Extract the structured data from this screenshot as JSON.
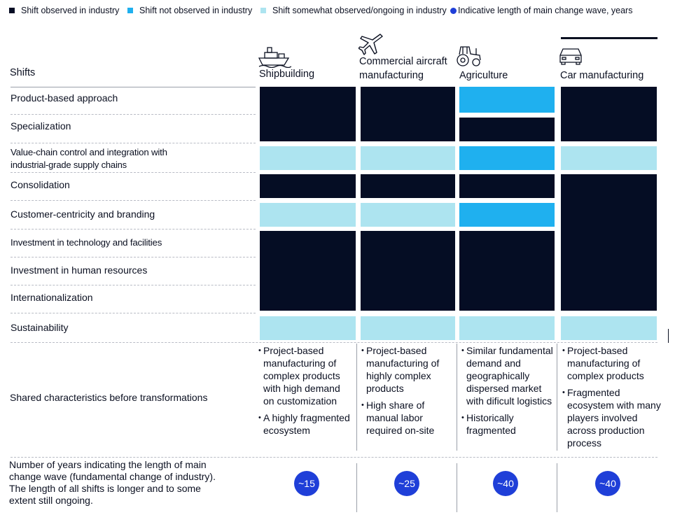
{
  "legend": [
    {
      "label": "Shift observed in industry",
      "color": "#050d24"
    },
    {
      "label": "Shift not observed in industry",
      "color": "#1fb0ef"
    },
    {
      "label": "Shift somewhat observed/ongoing in industry",
      "color": "#ade4f0"
    },
    {
      "label": "Indicative length of main change wave, years",
      "color": "#1f3fd8"
    }
  ],
  "header": {
    "shifts_label": "Shifts"
  },
  "columns": [
    {
      "name": "Shipbuilding",
      "icon": "ship-icon"
    },
    {
      "name": "Commercial aircraft manufacturing",
      "line1": "Commercial aircraft",
      "line2": "manufacturing",
      "icon": "airplane-icon"
    },
    {
      "name": "Agriculture",
      "icon": "tractor-icon"
    },
    {
      "name": "Car manufacturing",
      "icon": "car-icon"
    }
  ],
  "rows": [
    {
      "label": "Product-based approach"
    },
    {
      "label": "Specialization"
    },
    {
      "label": "Value-chain control and integration with",
      "label2": "industrial-grade supply chains"
    },
    {
      "label": "Consolidation"
    },
    {
      "label": "Customer-centricity and branding"
    },
    {
      "label": "Investment in technology and facilities"
    },
    {
      "label": "Investment in human resources"
    },
    {
      "label": "Internationalization"
    },
    {
      "label": "Sustainability"
    }
  ],
  "matrix_status": {
    "Shipbuilding": [
      "observed",
      "observed",
      "somewhat",
      "observed",
      "somewhat",
      "observed",
      "observed",
      "observed",
      "somewhat"
    ],
    "Commercial aircraft manufacturing": [
      "observed",
      "observed",
      "somewhat",
      "observed",
      "somewhat",
      "observed",
      "observed",
      "observed",
      "somewhat"
    ],
    "Agriculture": [
      "not_observed",
      "observed",
      "not_observed",
      "observed",
      "not_observed",
      "observed",
      "observed",
      "observed",
      "somewhat"
    ],
    "Car manufacturing": [
      "observed",
      "observed",
      "somewhat",
      "observed",
      "observed",
      "observed",
      "observed",
      "observed",
      "somewhat"
    ]
  },
  "characteristics": {
    "label": "Shared characteristics before transformations",
    "Shipbuilding": [
      "Project-based manufacturing of complex products with high demand on customization",
      "A highly fragmented ecosystem"
    ],
    "Commercial aircraft manufacturing": [
      "Project-based manufacturing of highly complex products",
      "High share of manual labor required on-site"
    ],
    "Agriculture": [
      "Similar fundamental demand and geographically dispersed market with dificult logistics",
      "Historically fragmented"
    ],
    "Car manufacturing": [
      "Project-based manufacturing of complex products",
      "Fragmented ecosystem with many players involved across production process"
    ]
  },
  "years": {
    "label": "Number of years indicating the length of main change wave (fundamental change of industry). The length of all shifts is longer and to some extent still ongoing.",
    "values": [
      "~15",
      "~25",
      "~40",
      "~40"
    ]
  }
}
